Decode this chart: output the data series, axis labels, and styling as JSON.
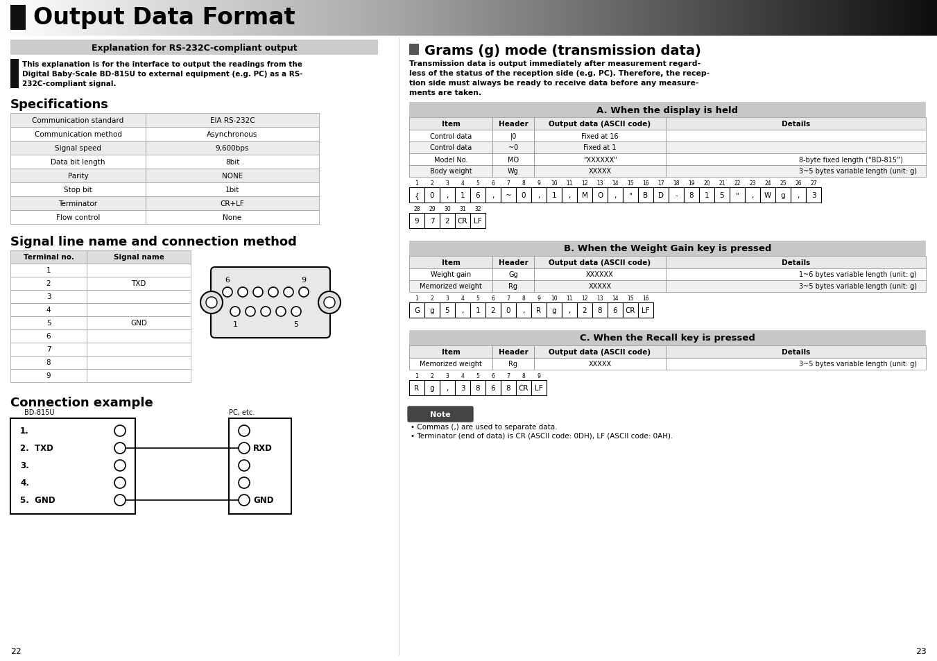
{
  "title": "Output Data Format",
  "subtitle": "Explanation for RS-232C-compliant output",
  "intro_text": "This explanation is for the interface to output the readings from the\nDigital Baby-Scale BD-815U to external equipment (e.g. PC) as a RS-\n232C-compliant signal.",
  "section1_title": "Specifications",
  "spec_rows": [
    [
      "Communication standard",
      "EIA RS-232C"
    ],
    [
      "Communication method",
      "Asynchronous"
    ],
    [
      "Signal speed",
      "9,600bps"
    ],
    [
      "Data bit length",
      "8bit"
    ],
    [
      "Parity",
      "NONE"
    ],
    [
      "Stop bit",
      "1bit"
    ],
    [
      "Terminator",
      "CR+LF"
    ],
    [
      "Flow control",
      "None"
    ]
  ],
  "section2_title": "Signal line name and connection method",
  "signal_rows": [
    [
      "Terminal no.",
      "Signal name"
    ],
    [
      "1",
      ""
    ],
    [
      "2",
      "TXD"
    ],
    [
      "3",
      ""
    ],
    [
      "4",
      ""
    ],
    [
      "5",
      "GND"
    ],
    [
      "6",
      ""
    ],
    [
      "7",
      ""
    ],
    [
      "8",
      ""
    ],
    [
      "9",
      ""
    ]
  ],
  "section3_title": "Connection example",
  "right_title": "Grams (g) mode (transmission data)",
  "right_intro": "Transmission data is output immediately after measurement regard-\nless of the status of the reception side (e.g. PC). Therefore, the recep-\ntion side must always be ready to receive data before any measure-\nments are taken.",
  "sectionA_title": "A. When the display is held",
  "tableA_headers": [
    "Item",
    "Header",
    "Output data (ASCII code)",
    "Details"
  ],
  "tableA_rows": [
    [
      "Control data",
      "|0",
      "Fixed at 16",
      ""
    ],
    [
      "Control data",
      "~0",
      "Fixed at 1",
      ""
    ],
    [
      "Model No.",
      "MO",
      "\"XXXXXX\"",
      "8-byte fixed length (“BD-815”)"
    ],
    [
      "Body weight",
      "Wg",
      "XXXXX",
      "3~5 bytes variable length (unit: g)"
    ]
  ],
  "tableA_cells1": [
    "{",
    "0",
    ",",
    "1",
    "6",
    ",",
    "~",
    "0",
    ",",
    "1",
    ",",
    "M",
    "O",
    ",",
    "\"",
    "B",
    "D",
    "-",
    "8",
    "1",
    "5",
    "\"",
    ",",
    "W",
    "g",
    ",",
    "3"
  ],
  "tableA_nums1": [
    "1",
    "2",
    "3",
    "4",
    "5",
    "6",
    "7",
    "8",
    "9",
    "10",
    "11",
    "12",
    "13",
    "14",
    "15",
    "16",
    "17",
    "18",
    "19",
    "20",
    "21",
    "22",
    "23",
    "24",
    "25",
    "26",
    "27"
  ],
  "tableA_cells2": [
    "9",
    "7",
    "2",
    "CR",
    "LF"
  ],
  "tableA_nums2": [
    "28",
    "29",
    "30",
    "31",
    "32"
  ],
  "sectionB_title": "B. When the Weight Gain key is pressed",
  "tableB_headers": [
    "Item",
    "Header",
    "Output data (ASCII code)",
    "Details"
  ],
  "tableB_rows": [
    [
      "Weight gain",
      "Gg",
      "XXXXXX",
      "1~6 bytes variable length (unit: g)"
    ],
    [
      "Memorized weight",
      "Rg",
      "XXXXX",
      "3~5 bytes variable length (unit: g)"
    ]
  ],
  "tableB_cells": [
    "G",
    "g",
    "5",
    ",",
    "1",
    "2",
    "0",
    ",",
    "R",
    "g",
    ",",
    "2",
    "8",
    "6",
    "CR",
    "LF"
  ],
  "tableB_nums": [
    "1",
    "2",
    "3",
    "4",
    "5",
    "6",
    "7",
    "8",
    "9",
    "10",
    "11",
    "12",
    "13",
    "14",
    "15",
    "16"
  ],
  "sectionC_title": "C. When the Recall key is pressed",
  "tableC_headers": [
    "Item",
    "Header",
    "Output data (ASCII code)",
    "Details"
  ],
  "tableC_rows": [
    [
      "Memorized weight",
      "Rg",
      "XXXXX",
      "3~5 bytes variable length (unit: g)"
    ]
  ],
  "tableC_cells": [
    "R",
    "g",
    ",",
    "3",
    "8",
    "6",
    "8",
    "CR",
    "LF"
  ],
  "tableC_nums": [
    "1",
    "2",
    "3",
    "4",
    "5",
    "6",
    "7",
    "8",
    "9"
  ],
  "note_title": "Note",
  "note_lines": [
    "Commas (,) are used to separate data.",
    "Terminator (end of data) is CR (ASCII code: 0DH), LF (ASCII code: 0AH)."
  ],
  "page_left": "22",
  "page_right": "23"
}
